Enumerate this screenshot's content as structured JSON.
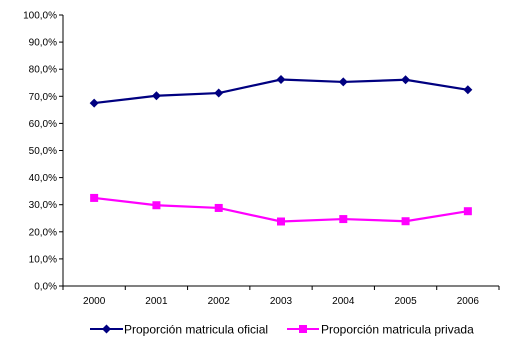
{
  "chart_data": {
    "type": "line",
    "title": "",
    "xlabel": "",
    "ylabel": "",
    "categories": [
      "2000",
      "2001",
      "2002",
      "2003",
      "2004",
      "2005",
      "2006"
    ],
    "yticks": [
      "0,0%",
      "10,0%",
      "20,0%",
      "30,0%",
      "40,0%",
      "50,0%",
      "60,0%",
      "70,0%",
      "80,0%",
      "90,0%",
      "100,0%"
    ],
    "ylim": [
      0,
      100
    ],
    "grid": false,
    "legend": "bottom",
    "series": [
      {
        "name": "Proporción matricula oficial",
        "values": [
          67.5,
          70.2,
          71.2,
          76.2,
          75.3,
          76.1,
          72.4
        ],
        "color": "#000080",
        "marker": "diamond"
      },
      {
        "name": "Proporción matricula privada",
        "values": [
          32.5,
          29.8,
          28.8,
          23.8,
          24.7,
          23.9,
          27.6
        ],
        "color": "#FF00FF",
        "marker": "square"
      }
    ]
  }
}
